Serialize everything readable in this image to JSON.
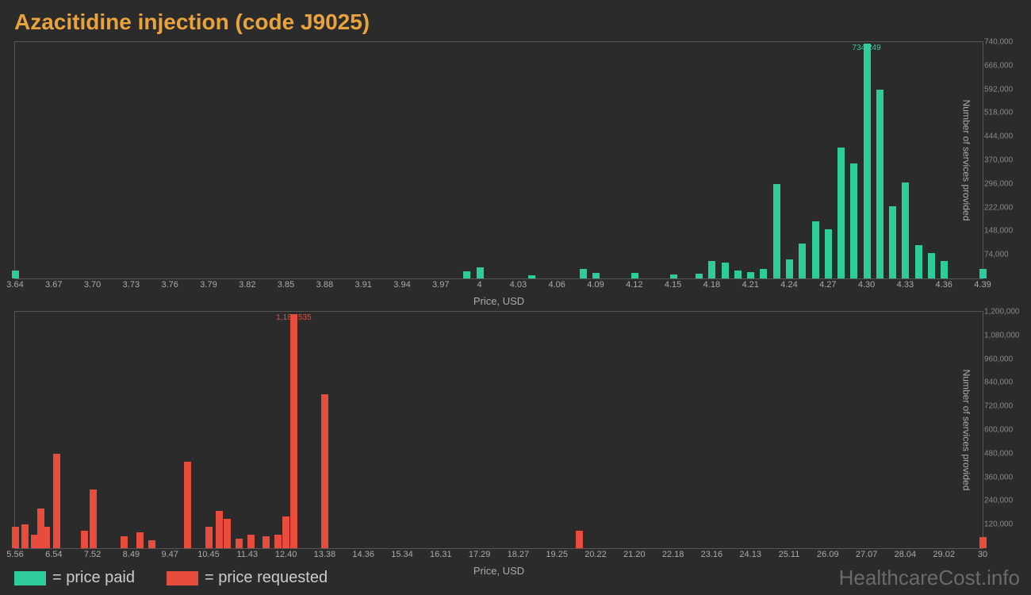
{
  "title": "Azacitidine injection (code J9025)",
  "watermark": "HealthcareCost.info",
  "colors": {
    "background": "#2b2b2b",
    "title": "#e8a33d",
    "paid": "#2ecc9a",
    "requested": "#e74c3c",
    "axis_text": "#aaaaaa",
    "tick_text": "#888888",
    "panel_border": "#555555"
  },
  "legend": {
    "paid": "= price paid",
    "requested": "= price requested"
  },
  "panel_paid": {
    "x_label": "Price, USD",
    "y_label": "Number of services provided",
    "peak_label": "734,249",
    "peak_x": 4.3,
    "xlim": [
      3.64,
      4.39
    ],
    "x_ticks": [
      "3.64",
      "3.67",
      "3.70",
      "3.73",
      "3.76",
      "3.79",
      "3.82",
      "3.85",
      "3.88",
      "3.91",
      "3.94",
      "3.97",
      "4",
      "4.03",
      "4.06",
      "4.09",
      "4.12",
      "4.15",
      "4.18",
      "4.21",
      "4.24",
      "4.27",
      "4.30",
      "4.33",
      "4.36",
      "4.39"
    ],
    "ylim": [
      0,
      740000
    ],
    "y_ticks": [
      "74,000",
      "148,000",
      "222,000",
      "296,000",
      "370,000",
      "444,000",
      "518,000",
      "592,000",
      "666,000",
      "740,000"
    ],
    "y_tick_vals": [
      74000,
      148000,
      222000,
      296000,
      370000,
      444000,
      518000,
      592000,
      666000,
      740000
    ],
    "bars": [
      {
        "x": 3.64,
        "y": 25000
      },
      {
        "x": 3.99,
        "y": 22000
      },
      {
        "x": 4.0,
        "y": 35000
      },
      {
        "x": 4.04,
        "y": 10000
      },
      {
        "x": 4.08,
        "y": 30000
      },
      {
        "x": 4.09,
        "y": 18000
      },
      {
        "x": 4.12,
        "y": 18000
      },
      {
        "x": 4.15,
        "y": 12000
      },
      {
        "x": 4.17,
        "y": 15000
      },
      {
        "x": 4.18,
        "y": 55000
      },
      {
        "x": 4.19,
        "y": 50000
      },
      {
        "x": 4.2,
        "y": 25000
      },
      {
        "x": 4.21,
        "y": 20000
      },
      {
        "x": 4.22,
        "y": 30000
      },
      {
        "x": 4.23,
        "y": 295000
      },
      {
        "x": 4.24,
        "y": 60000
      },
      {
        "x": 4.25,
        "y": 110000
      },
      {
        "x": 4.26,
        "y": 180000
      },
      {
        "x": 4.27,
        "y": 155000
      },
      {
        "x": 4.28,
        "y": 410000
      },
      {
        "x": 4.29,
        "y": 360000
      },
      {
        "x": 4.3,
        "y": 734249
      },
      {
        "x": 4.31,
        "y": 590000
      },
      {
        "x": 4.32,
        "y": 225000
      },
      {
        "x": 4.33,
        "y": 300000
      },
      {
        "x": 4.34,
        "y": 105000
      },
      {
        "x": 4.35,
        "y": 80000
      },
      {
        "x": 4.36,
        "y": 55000
      },
      {
        "x": 4.39,
        "y": 30000
      }
    ]
  },
  "panel_requested": {
    "x_label": "Price, USD",
    "y_label": "Number of services provided",
    "peak_label": "1,186,535",
    "peak_x": 12.6,
    "xlim": [
      5.56,
      30.0
    ],
    "x_ticks": [
      "5.56",
      "6.54",
      "7.52",
      "8.49",
      "9.47",
      "10.45",
      "11.43",
      "12.40",
      "13.38",
      "14.36",
      "15.34",
      "16.31",
      "17.29",
      "18.27",
      "19.25",
      "20.22",
      "21.20",
      "22.18",
      "23.16",
      "24.13",
      "25.11",
      "26.09",
      "27.07",
      "28.04",
      "29.02",
      "30"
    ],
    "ylim": [
      0,
      1200000
    ],
    "y_ticks": [
      "120,000",
      "240,000",
      "360,000",
      "480,000",
      "600,000",
      "720,000",
      "840,000",
      "960,000",
      "1,080,000",
      "1,200,000"
    ],
    "y_tick_vals": [
      120000,
      240000,
      360000,
      480000,
      600000,
      720000,
      840000,
      960000,
      1080000,
      1200000
    ],
    "bars": [
      {
        "x": 5.56,
        "y": 110000
      },
      {
        "x": 5.8,
        "y": 120000
      },
      {
        "x": 6.05,
        "y": 70000
      },
      {
        "x": 6.2,
        "y": 200000
      },
      {
        "x": 6.35,
        "y": 110000
      },
      {
        "x": 6.6,
        "y": 480000
      },
      {
        "x": 7.3,
        "y": 90000
      },
      {
        "x": 7.52,
        "y": 300000
      },
      {
        "x": 8.3,
        "y": 60000
      },
      {
        "x": 8.7,
        "y": 80000
      },
      {
        "x": 9.0,
        "y": 40000
      },
      {
        "x": 9.9,
        "y": 440000
      },
      {
        "x": 10.45,
        "y": 110000
      },
      {
        "x": 10.7,
        "y": 190000
      },
      {
        "x": 10.9,
        "y": 150000
      },
      {
        "x": 11.2,
        "y": 50000
      },
      {
        "x": 11.5,
        "y": 70000
      },
      {
        "x": 11.9,
        "y": 60000
      },
      {
        "x": 12.2,
        "y": 70000
      },
      {
        "x": 12.4,
        "y": 160000
      },
      {
        "x": 12.6,
        "y": 1186535
      },
      {
        "x": 13.38,
        "y": 780000
      },
      {
        "x": 19.8,
        "y": 90000
      },
      {
        "x": 30.0,
        "y": 55000
      }
    ]
  }
}
